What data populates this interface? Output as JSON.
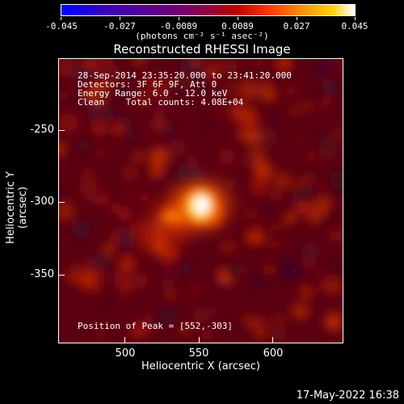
{
  "colorbar": {
    "tick_labels": [
      "-0.045",
      "-0.027",
      "-0.0089",
      "0.0089",
      "0.027",
      "0.045"
    ],
    "units": "(photons cm⁻² s⁻¹ asec⁻²)",
    "range": [
      -0.045,
      0.045
    ]
  },
  "title": "Reconstructed RHESSI Image",
  "info": {
    "line1": "28-Sep-2014 23:35:20.000 to 23:41:20.000",
    "line2": "Detectors: 3F 6F 9F, Att 0",
    "line3": "Energy Range: 6.0 - 12.0 keV",
    "line4": "Clean    Total counts: 4.08E+04",
    "peak": "Position of Peak = [552,-303]"
  },
  "axes": {
    "xlabel": "Heliocentric X (arcsec)",
    "ylabel": "Heliocentric Y (arcsec)",
    "xticks": [
      "500",
      "550",
      "600"
    ],
    "yticks": [
      "-250",
      "-300",
      "-350"
    ]
  },
  "timestamp": "17-May-2022 16:38"
}
